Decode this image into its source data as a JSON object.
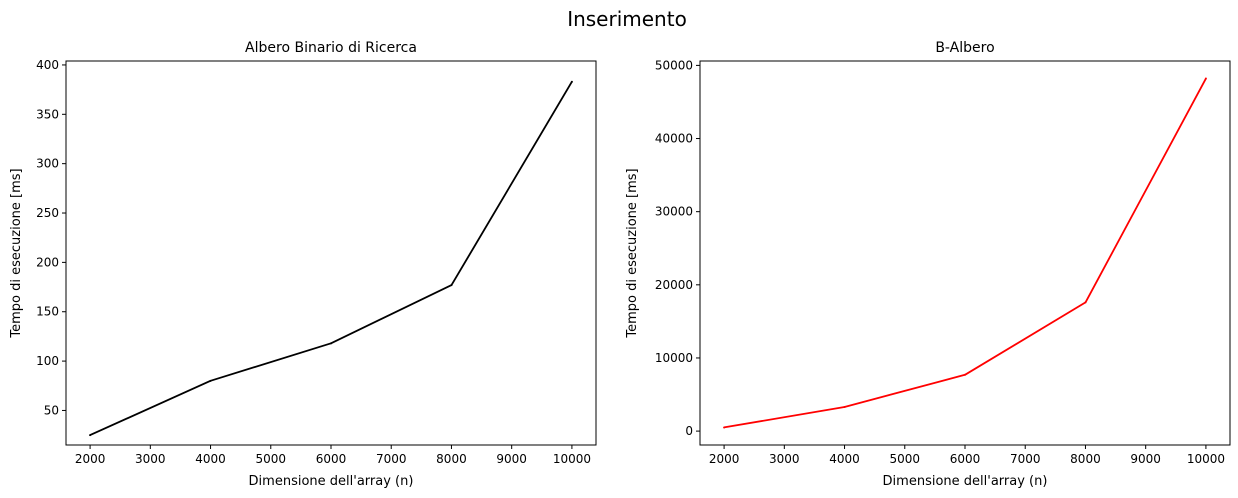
{
  "figure": {
    "suptitle": "Inserimento"
  },
  "chart_data": [
    {
      "type": "line",
      "title": "Albero Binario di Ricerca",
      "xlabel": "Dimensione dell'array (n)",
      "ylabel": "Tempo di esecuzione [ms]",
      "xlim": [
        1600,
        10400
      ],
      "ylim": [
        15,
        404
      ],
      "xticks": [
        2000,
        3000,
        4000,
        5000,
        6000,
        7000,
        8000,
        9000,
        10000
      ],
      "yticks": [
        50,
        100,
        150,
        200,
        250,
        300,
        350,
        400
      ],
      "grid": false,
      "series": [
        {
          "color": "#000000",
          "x": [
            2000,
            4000,
            6000,
            8000,
            10000
          ],
          "y": [
            25,
            80,
            118,
            177,
            383
          ]
        }
      ]
    },
    {
      "type": "line",
      "title": "B-Albero",
      "xlabel": "Dimensione dell'array (n)",
      "ylabel": "Tempo di esecuzione [ms]",
      "xlim": [
        1600,
        10400
      ],
      "ylim": [
        -1900,
        50600
      ],
      "xticks": [
        2000,
        3000,
        4000,
        5000,
        6000,
        7000,
        8000,
        9000,
        10000
      ],
      "yticks": [
        0,
        10000,
        20000,
        30000,
        40000,
        50000
      ],
      "grid": false,
      "series": [
        {
          "color": "#ff0000",
          "x": [
            2000,
            4000,
            6000,
            8000,
            10000
          ],
          "y": [
            500,
            3300,
            7700,
            17600,
            48200
          ]
        }
      ]
    }
  ]
}
